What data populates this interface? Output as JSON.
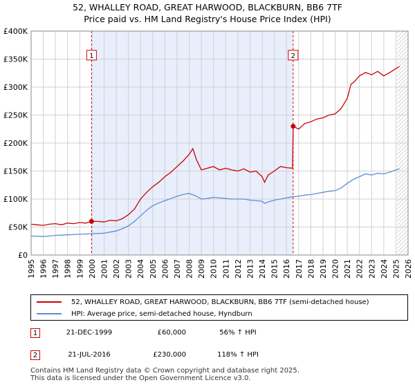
{
  "title_line1": "52, WHALLEY ROAD, GREAT HARWOOD, BLACKBURN, BB6 7TF",
  "title_line2": "Price paid vs. HM Land Registry's House Price Index (HPI)",
  "colors": {
    "property": "#cc0000",
    "hpi": "#5b8fcf",
    "shade": "#e8eefb",
    "grid": "#d0d0d0",
    "marker_line": "#cc0000"
  },
  "chart_data": {
    "type": "line",
    "title": "Price paid vs. HM Land Registry's House Price Index (HPI)",
    "xlabel": "",
    "ylabel": "",
    "xlim": [
      1995,
      2026
    ],
    "ylim": [
      0,
      400000
    ],
    "x_ticks": [
      "1995",
      "1996",
      "1997",
      "1998",
      "1999",
      "2000",
      "2001",
      "2002",
      "2003",
      "2004",
      "2005",
      "2006",
      "2007",
      "2008",
      "2009",
      "2010",
      "2011",
      "2012",
      "2013",
      "2014",
      "2015",
      "2016",
      "2017",
      "2018",
      "2019",
      "2020",
      "2021",
      "2022",
      "2023",
      "2024",
      "2025",
      "2026"
    ],
    "y_ticks": [
      {
        "value": 0,
        "label": "£0"
      },
      {
        "value": 50000,
        "label": "£50K"
      },
      {
        "value": 100000,
        "label": "£100K"
      },
      {
        "value": 150000,
        "label": "£150K"
      },
      {
        "value": 200000,
        "label": "£200K"
      },
      {
        "value": 250000,
        "label": "£250K"
      },
      {
        "value": 300000,
        "label": "£300K"
      },
      {
        "value": 350000,
        "label": "£350K"
      },
      {
        "value": 400000,
        "label": "£400K"
      }
    ],
    "shaded_region": [
      1999.97,
      2016.55
    ],
    "hatched_from": 2025.1,
    "series": [
      {
        "name": "52, WHALLEY ROAD, GREAT HARWOOD, BLACKBURN, BB6 7TF (semi-detached house)",
        "color": "#cc0000",
        "points": [
          [
            1995.0,
            55000
          ],
          [
            1995.5,
            54000
          ],
          [
            1996.0,
            53000
          ],
          [
            1996.5,
            55000
          ],
          [
            1997.0,
            56000
          ],
          [
            1997.5,
            54000
          ],
          [
            1998.0,
            57000
          ],
          [
            1998.5,
            56000
          ],
          [
            1999.0,
            58000
          ],
          [
            1999.5,
            57000
          ],
          [
            1999.97,
            60000
          ],
          [
            2000.5,
            60000
          ],
          [
            2001.0,
            59000
          ],
          [
            2001.5,
            62000
          ],
          [
            2002.0,
            61000
          ],
          [
            2002.5,
            65000
          ],
          [
            2003.0,
            72000
          ],
          [
            2003.5,
            82000
          ],
          [
            2004.0,
            100000
          ],
          [
            2004.5,
            112000
          ],
          [
            2005.0,
            122000
          ],
          [
            2005.5,
            130000
          ],
          [
            2006.0,
            140000
          ],
          [
            2006.5,
            148000
          ],
          [
            2007.0,
            158000
          ],
          [
            2007.5,
            168000
          ],
          [
            2008.0,
            180000
          ],
          [
            2008.3,
            190000
          ],
          [
            2008.6,
            170000
          ],
          [
            2009.0,
            152000
          ],
          [
            2009.5,
            155000
          ],
          [
            2010.0,
            158000
          ],
          [
            2010.5,
            152000
          ],
          [
            2011.0,
            155000
          ],
          [
            2011.5,
            152000
          ],
          [
            2012.0,
            150000
          ],
          [
            2012.5,
            154000
          ],
          [
            2013.0,
            148000
          ],
          [
            2013.5,
            150000
          ],
          [
            2014.0,
            140000
          ],
          [
            2014.2,
            130000
          ],
          [
            2014.5,
            143000
          ],
          [
            2015.0,
            150000
          ],
          [
            2015.5,
            158000
          ],
          [
            2016.0,
            156000
          ],
          [
            2016.5,
            155000
          ],
          [
            2016.55,
            230000
          ],
          [
            2017.0,
            225000
          ],
          [
            2017.5,
            235000
          ],
          [
            2018.0,
            238000
          ],
          [
            2018.5,
            243000
          ],
          [
            2019.0,
            245000
          ],
          [
            2019.5,
            250000
          ],
          [
            2020.0,
            252000
          ],
          [
            2020.5,
            262000
          ],
          [
            2021.0,
            280000
          ],
          [
            2021.3,
            305000
          ],
          [
            2021.6,
            310000
          ],
          [
            2022.0,
            320000
          ],
          [
            2022.5,
            326000
          ],
          [
            2023.0,
            322000
          ],
          [
            2023.5,
            328000
          ],
          [
            2024.0,
            320000
          ],
          [
            2024.5,
            326000
          ],
          [
            2025.0,
            333000
          ],
          [
            2025.3,
            337000
          ]
        ]
      },
      {
        "name": "HPI: Average price, semi-detached house, Hyndburn",
        "color": "#5b8fcf",
        "points": [
          [
            1995.0,
            34000
          ],
          [
            1995.5,
            33500
          ],
          [
            1996.0,
            33000
          ],
          [
            1996.5,
            34000
          ],
          [
            1997.0,
            35000
          ],
          [
            1997.5,
            35500
          ],
          [
            1998.0,
            36000
          ],
          [
            1998.5,
            36500
          ],
          [
            1999.0,
            37000
          ],
          [
            1999.5,
            37500
          ],
          [
            2000.0,
            38000
          ],
          [
            2000.5,
            38500
          ],
          [
            2001.0,
            39000
          ],
          [
            2001.5,
            41000
          ],
          [
            2002.0,
            43000
          ],
          [
            2002.5,
            47000
          ],
          [
            2003.0,
            52000
          ],
          [
            2003.5,
            60000
          ],
          [
            2004.0,
            70000
          ],
          [
            2004.5,
            80000
          ],
          [
            2005.0,
            88000
          ],
          [
            2005.5,
            93000
          ],
          [
            2006.0,
            97000
          ],
          [
            2006.5,
            101000
          ],
          [
            2007.0,
            105000
          ],
          [
            2007.5,
            108000
          ],
          [
            2008.0,
            110000
          ],
          [
            2008.5,
            106000
          ],
          [
            2009.0,
            100000
          ],
          [
            2009.5,
            101000
          ],
          [
            2010.0,
            103000
          ],
          [
            2010.5,
            102000
          ],
          [
            2011.0,
            101000
          ],
          [
            2011.5,
            100000
          ],
          [
            2012.0,
            100000
          ],
          [
            2012.5,
            100000
          ],
          [
            2013.0,
            98000
          ],
          [
            2013.5,
            97000
          ],
          [
            2014.0,
            96000
          ],
          [
            2014.2,
            92000
          ],
          [
            2014.5,
            95000
          ],
          [
            2015.0,
            98000
          ],
          [
            2015.5,
            100000
          ],
          [
            2016.0,
            102000
          ],
          [
            2016.5,
            104000
          ],
          [
            2017.0,
            105000
          ],
          [
            2017.5,
            107000
          ],
          [
            2018.0,
            108000
          ],
          [
            2018.5,
            110000
          ],
          [
            2019.0,
            112000
          ],
          [
            2019.5,
            114000
          ],
          [
            2020.0,
            115000
          ],
          [
            2020.5,
            120000
          ],
          [
            2021.0,
            128000
          ],
          [
            2021.5,
            135000
          ],
          [
            2022.0,
            140000
          ],
          [
            2022.5,
            145000
          ],
          [
            2023.0,
            143000
          ],
          [
            2023.5,
            146000
          ],
          [
            2024.0,
            145000
          ],
          [
            2024.5,
            148000
          ],
          [
            2025.0,
            152000
          ],
          [
            2025.3,
            154000
          ]
        ]
      }
    ],
    "markers": [
      {
        "label": "1",
        "x": 1999.97,
        "y": 60000,
        "box_y": 357000
      },
      {
        "label": "2",
        "x": 2016.55,
        "y": 230000,
        "box_y": 357000
      }
    ]
  },
  "legend": {
    "property_label": "52, WHALLEY ROAD, GREAT HARWOOD, BLACKBURN, BB6 7TF (semi-detached house)",
    "hpi_label": "HPI: Average price, semi-detached house, Hyndburn"
  },
  "transactions": [
    {
      "badge": "1",
      "date": "21-DEC-1999",
      "price": "£60,000",
      "hpi": "56% ↑ HPI"
    },
    {
      "badge": "2",
      "date": "21-JUL-2016",
      "price": "£230,000",
      "hpi": "118% ↑ HPI"
    }
  ],
  "footer_line1": "Contains HM Land Registry data © Crown copyright and database right 2025.",
  "footer_line2": "This data is licensed under the Open Government Licence v3.0."
}
